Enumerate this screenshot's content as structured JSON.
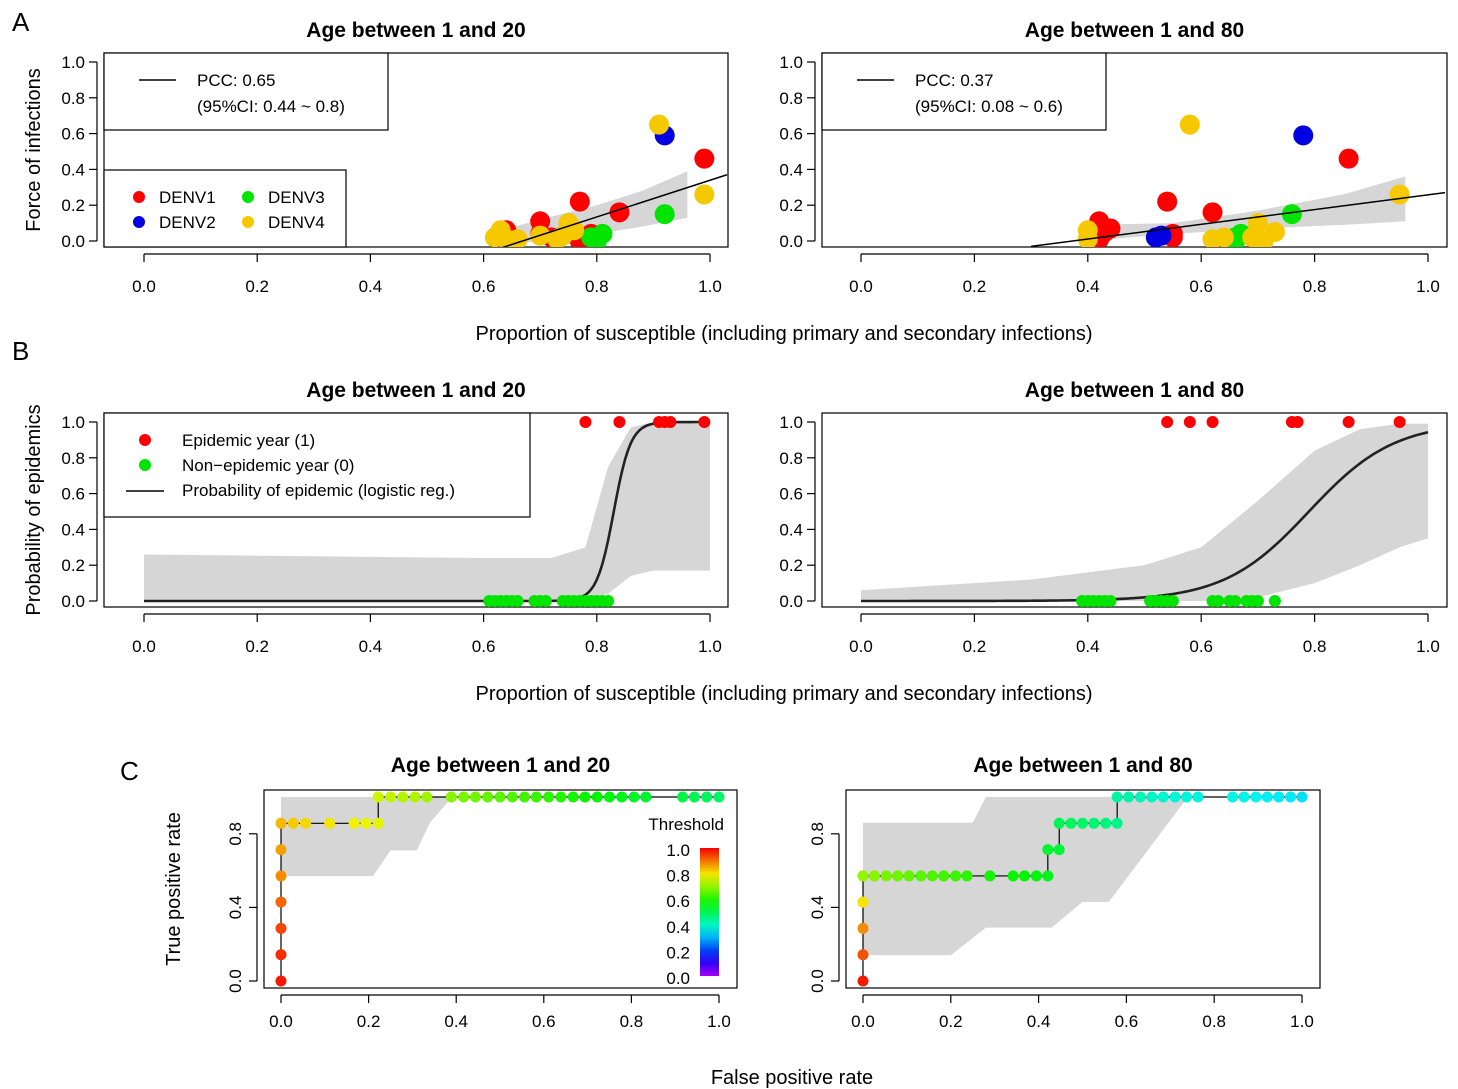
{
  "panel_labels": [
    "A",
    "B",
    "C"
  ],
  "chart_data": [
    {
      "id": "A1",
      "type": "scatter",
      "title": "Age between 1 and 20",
      "ylabel": "Force of infections",
      "xlim": [
        -0.04,
        1.03
      ],
      "ylim": [
        -0.02,
        1.05
      ],
      "xticks": [
        "0.0",
        "0.2",
        "0.4",
        "0.6",
        "0.8",
        "1.0"
      ],
      "yticks": [
        "0.0",
        "0.2",
        "0.4",
        "0.6",
        "0.8",
        "1.0"
      ],
      "legend_fit": [
        "PCC: 0.65",
        "(95%CI: 0.44 ~ 0.8)"
      ],
      "legend_serotypes": [
        {
          "name": "DENV1",
          "color": "#ff0000"
        },
        {
          "name": "DENV3",
          "color": "#00e400"
        },
        {
          "name": "DENV2",
          "color": "#0000e0"
        },
        {
          "name": "DENV4",
          "color": "#f5c800"
        }
      ],
      "fit_line": [
        [
          0.62,
          -0.05
        ],
        [
          1.03,
          0.37
        ]
      ],
      "ci_band": {
        "x": [
          0.62,
          0.7,
          0.8,
          0.88,
          0.96
        ],
        "lower": [
          -0.03,
          0.0,
          0.04,
          0.08,
          0.13
        ],
        "upper": [
          0.05,
          0.12,
          0.2,
          0.28,
          0.39
        ]
      },
      "points": {
        "DENV1": [
          [
            0.64,
            0.06
          ],
          [
            0.7,
            0.11
          ],
          [
            0.7,
            0.04
          ],
          [
            0.72,
            0.02
          ],
          [
            0.77,
            0.22
          ],
          [
            0.79,
            0.04
          ],
          [
            0.84,
            0.16
          ],
          [
            0.99,
            0.46
          ],
          [
            0.77,
            0.0
          ]
        ],
        "DENV2": [
          [
            0.92,
            0.59
          ]
        ],
        "DENV3": [
          [
            0.79,
            0.02
          ],
          [
            0.81,
            0.04
          ],
          [
            0.8,
            0.0
          ],
          [
            0.92,
            0.15
          ]
        ],
        "DENV4": [
          [
            0.62,
            0.02
          ],
          [
            0.63,
            0.06
          ],
          [
            0.64,
            0.01
          ],
          [
            0.66,
            0.01
          ],
          [
            0.7,
            0.03
          ],
          [
            0.74,
            0.03
          ],
          [
            0.75,
            0.1
          ],
          [
            0.76,
            0.06
          ],
          [
            0.91,
            0.65
          ],
          [
            0.99,
            0.26
          ],
          [
            0.73,
            0.01
          ]
        ]
      }
    },
    {
      "id": "A2",
      "type": "scatter",
      "title": "Age between 1 and 80",
      "xlim": [
        -0.04,
        1.03
      ],
      "ylim": [
        -0.02,
        1.05
      ],
      "xticks": [
        "0.0",
        "0.2",
        "0.4",
        "0.6",
        "0.8",
        "1.0"
      ],
      "yticks": [
        "0.0",
        "0.2",
        "0.4",
        "0.6",
        "0.8",
        "1.0"
      ],
      "legend_fit": [
        "PCC: 0.37",
        "(95%CI: 0.08 ~ 0.6)"
      ],
      "fit_line": [
        [
          0.3,
          -0.03
        ],
        [
          1.03,
          0.27
        ]
      ],
      "ci_band": {
        "x": [
          0.4,
          0.55,
          0.7,
          0.85,
          0.96
        ],
        "lower": [
          0.0,
          0.04,
          0.07,
          0.09,
          0.11
        ],
        "upper": [
          0.09,
          0.1,
          0.17,
          0.26,
          0.36
        ]
      },
      "points": {
        "DENV1": [
          [
            0.42,
            0.11
          ],
          [
            0.43,
            0.05
          ],
          [
            0.44,
            0.07
          ],
          [
            0.54,
            0.22
          ],
          [
            0.55,
            0.02
          ],
          [
            0.55,
            0.04
          ],
          [
            0.62,
            0.16
          ],
          [
            0.86,
            0.46
          ],
          [
            0.42,
            0.01
          ]
        ],
        "DENV2": [
          [
            0.52,
            0.02
          ],
          [
            0.53,
            0.03
          ],
          [
            0.78,
            0.59
          ]
        ],
        "DENV3": [
          [
            0.66,
            0.02
          ],
          [
            0.67,
            0.04
          ],
          [
            0.76,
            0.15
          ],
          [
            0.66,
            0.0
          ]
        ],
        "DENV4": [
          [
            0.4,
            0.01
          ],
          [
            0.4,
            0.06
          ],
          [
            0.58,
            0.65
          ],
          [
            0.62,
            0.01
          ],
          [
            0.64,
            0.02
          ],
          [
            0.69,
            0.02
          ],
          [
            0.7,
            0.1
          ],
          [
            0.7,
            0.0
          ],
          [
            0.71,
            0.0
          ],
          [
            0.73,
            0.05
          ],
          [
            0.95,
            0.26
          ]
        ]
      }
    },
    {
      "id": "B1",
      "type": "scatter",
      "title": "Age between 1 and 20",
      "ylabel": "Probability of epidemics",
      "xlim": [
        -0.04,
        1.03
      ],
      "ylim": [
        -0.02,
        1.05
      ],
      "xticks": [
        "0.0",
        "0.2",
        "0.4",
        "0.6",
        "0.8",
        "1.0"
      ],
      "yticks": [
        "0.0",
        "0.2",
        "0.4",
        "0.6",
        "0.8",
        "1.0"
      ],
      "legend": [
        "Epidemic year (1)",
        "Non−epidemic year (0)",
        "Probability of epidemic (logistic reg.)"
      ],
      "logistic": {
        "center": 0.83,
        "scale": 0.015
      },
      "epidemic_x": [
        0.78,
        0.84,
        0.91,
        0.92,
        0.93,
        0.99
      ],
      "nonepidemic_x": [
        0.61,
        0.62,
        0.63,
        0.64,
        0.65,
        0.66,
        0.69,
        0.7,
        0.71,
        0.74,
        0.75,
        0.76,
        0.77,
        0.78,
        0.79,
        0.8,
        0.81,
        0.82
      ],
      "ci_band": {
        "x": [
          0.0,
          0.6,
          0.72,
          0.78,
          0.82,
          0.86,
          0.9,
          1.0
        ],
        "lower": [
          0.0,
          0.0,
          0.0,
          0.0,
          0.04,
          0.14,
          0.17,
          0.17
        ],
        "upper": [
          0.26,
          0.24,
          0.24,
          0.3,
          0.75,
          0.97,
          1.0,
          1.0
        ]
      }
    },
    {
      "id": "B2",
      "type": "scatter",
      "title": "Age between 1 and 80",
      "xlim": [
        -0.04,
        1.03
      ],
      "ylim": [
        -0.02,
        1.05
      ],
      "xticks": [
        "0.0",
        "0.2",
        "0.4",
        "0.6",
        "0.8",
        "1.0"
      ],
      "yticks": [
        "0.0",
        "0.2",
        "0.4",
        "0.6",
        "0.8",
        "1.0"
      ],
      "logistic": {
        "center": 0.79,
        "scale": 0.075
      },
      "epidemic_x": [
        0.54,
        0.58,
        0.62,
        0.76,
        0.77,
        0.86,
        0.95
      ],
      "nonepidemic_x": [
        0.39,
        0.4,
        0.41,
        0.42,
        0.43,
        0.44,
        0.51,
        0.52,
        0.53,
        0.54,
        0.55,
        0.62,
        0.63,
        0.65,
        0.66,
        0.68,
        0.69,
        0.7,
        0.73
      ],
      "ci_band": {
        "x": [
          0.0,
          0.3,
          0.5,
          0.6,
          0.7,
          0.8,
          0.88,
          0.95,
          1.0
        ],
        "lower": [
          0.0,
          0.0,
          0.0,
          0.0,
          0.02,
          0.1,
          0.2,
          0.3,
          0.35
        ],
        "upper": [
          0.06,
          0.12,
          0.2,
          0.3,
          0.56,
          0.84,
          0.96,
          0.99,
          0.99
        ]
      }
    },
    {
      "id": "C1",
      "type": "line",
      "title": "Age between 1 and 20",
      "ylabel": "True positive rate",
      "xlim": [
        -0.04,
        1.04
      ],
      "ylim": [
        -0.04,
        1.04
      ],
      "xticks": [
        "0.0",
        "0.2",
        "0.4",
        "0.6",
        "0.8",
        "1.0"
      ],
      "yticks": [
        "0.0",
        "0.4",
        "0.8"
      ],
      "colorbar": {
        "title": "Threshold",
        "ticks": [
          "1.0",
          "0.8",
          "0.6",
          "0.4",
          "0.2",
          "0.0"
        ]
      },
      "roc_points": [
        [
          0.0,
          0.0,
          0.98
        ],
        [
          0.0,
          0.143,
          0.96
        ],
        [
          0.0,
          0.286,
          0.94
        ],
        [
          0.0,
          0.429,
          0.91
        ],
        [
          0.0,
          0.571,
          0.88
        ],
        [
          0.0,
          0.714,
          0.86
        ],
        [
          0.0,
          0.857,
          0.84
        ],
        [
          0.028,
          0.857,
          0.82
        ],
        [
          0.056,
          0.857,
          0.81
        ],
        [
          0.111,
          0.857,
          0.8
        ],
        [
          0.167,
          0.857,
          0.79
        ],
        [
          0.194,
          0.857,
          0.78
        ],
        [
          0.222,
          0.857,
          0.77
        ],
        [
          0.222,
          1.0,
          0.75
        ],
        [
          0.25,
          1.0,
          0.74
        ],
        [
          0.278,
          1.0,
          0.73
        ],
        [
          0.306,
          1.0,
          0.72
        ],
        [
          0.333,
          1.0,
          0.71
        ],
        [
          0.389,
          1.0,
          0.69
        ],
        [
          0.417,
          1.0,
          0.68
        ],
        [
          0.444,
          1.0,
          0.67
        ],
        [
          0.472,
          1.0,
          0.66
        ],
        [
          0.5,
          1.0,
          0.65
        ],
        [
          0.528,
          1.0,
          0.64
        ],
        [
          0.556,
          1.0,
          0.63
        ],
        [
          0.583,
          1.0,
          0.62
        ],
        [
          0.611,
          1.0,
          0.61
        ],
        [
          0.639,
          1.0,
          0.6
        ],
        [
          0.667,
          1.0,
          0.59
        ],
        [
          0.694,
          1.0,
          0.58
        ],
        [
          0.722,
          1.0,
          0.57
        ],
        [
          0.75,
          1.0,
          0.56
        ],
        [
          0.778,
          1.0,
          0.55
        ],
        [
          0.806,
          1.0,
          0.54
        ],
        [
          0.833,
          1.0,
          0.53
        ],
        [
          0.917,
          1.0,
          0.51
        ],
        [
          0.944,
          1.0,
          0.5
        ],
        [
          0.972,
          1.0,
          0.49
        ],
        [
          1.0,
          1.0,
          0.48
        ]
      ],
      "ci_upper": [
        [
          0.0,
          1.0
        ],
        [
          0.4,
          1.0
        ],
        [
          0.38,
          0.97
        ],
        [
          0.34,
          0.86
        ],
        [
          0.31,
          0.71
        ],
        [
          0.25,
          0.71
        ],
        [
          0.21,
          0.57
        ],
        [
          0.04,
          0.57
        ],
        [
          0.0,
          0.57
        ]
      ]
    },
    {
      "id": "C2",
      "type": "line",
      "title": "Age between 1 and 80",
      "xlim": [
        -0.04,
        1.04
      ],
      "ylim": [
        -0.04,
        1.04
      ],
      "xticks": [
        "0.0",
        "0.2",
        "0.4",
        "0.6",
        "0.8",
        "1.0"
      ],
      "yticks": [
        "0.0",
        "0.4",
        "0.8"
      ],
      "roc_points": [
        [
          0.0,
          0.0,
          0.98
        ],
        [
          0.0,
          0.143,
          0.93
        ],
        [
          0.0,
          0.286,
          0.88
        ],
        [
          0.0,
          0.429,
          0.8
        ],
        [
          0.0,
          0.571,
          0.7
        ],
        [
          0.026,
          0.571,
          0.69
        ],
        [
          0.053,
          0.571,
          0.68
        ],
        [
          0.079,
          0.571,
          0.67
        ],
        [
          0.105,
          0.571,
          0.66
        ],
        [
          0.132,
          0.571,
          0.65
        ],
        [
          0.158,
          0.571,
          0.64
        ],
        [
          0.184,
          0.571,
          0.63
        ],
        [
          0.211,
          0.571,
          0.62
        ],
        [
          0.237,
          0.571,
          0.61
        ],
        [
          0.289,
          0.571,
          0.59
        ],
        [
          0.342,
          0.571,
          0.58
        ],
        [
          0.368,
          0.571,
          0.57
        ],
        [
          0.395,
          0.571,
          0.56
        ],
        [
          0.421,
          0.571,
          0.55
        ],
        [
          0.421,
          0.714,
          0.53
        ],
        [
          0.447,
          0.714,
          0.52
        ],
        [
          0.447,
          0.857,
          0.5
        ],
        [
          0.474,
          0.857,
          0.49
        ],
        [
          0.5,
          0.857,
          0.48
        ],
        [
          0.526,
          0.857,
          0.47
        ],
        [
          0.553,
          0.857,
          0.46
        ],
        [
          0.579,
          0.857,
          0.45
        ],
        [
          0.579,
          1.0,
          0.43
        ],
        [
          0.605,
          1.0,
          0.42
        ],
        [
          0.632,
          1.0,
          0.41
        ],
        [
          0.658,
          1.0,
          0.4
        ],
        [
          0.684,
          1.0,
          0.39
        ],
        [
          0.711,
          1.0,
          0.385
        ],
        [
          0.737,
          1.0,
          0.38
        ],
        [
          0.763,
          1.0,
          0.375
        ],
        [
          0.842,
          1.0,
          0.37
        ],
        [
          0.868,
          1.0,
          0.365
        ],
        [
          0.895,
          1.0,
          0.36
        ],
        [
          0.921,
          1.0,
          0.355
        ],
        [
          0.947,
          1.0,
          0.35
        ],
        [
          0.974,
          1.0,
          0.345
        ],
        [
          1.0,
          1.0,
          0.34
        ]
      ],
      "ci_band": {
        "upper": [
          [
            0.0,
            0.86
          ],
          [
            0.25,
            0.86
          ],
          [
            0.25,
            0.86
          ],
          [
            0.28,
            1.0
          ],
          [
            0.74,
            1.0
          ]
        ],
        "lower": [
          [
            1.0,
            1.0
          ],
          [
            0.74,
            1.0
          ],
          [
            0.56,
            0.43
          ],
          [
            0.5,
            0.43
          ],
          [
            0.43,
            0.29
          ],
          [
            0.28,
            0.29
          ],
          [
            0.2,
            0.14
          ],
          [
            0.0,
            0.14
          ]
        ]
      }
    }
  ],
  "xlabel_AB": "Proportion of susceptible (including primary and secondary infections)",
  "xlabel_C": "False positive rate"
}
